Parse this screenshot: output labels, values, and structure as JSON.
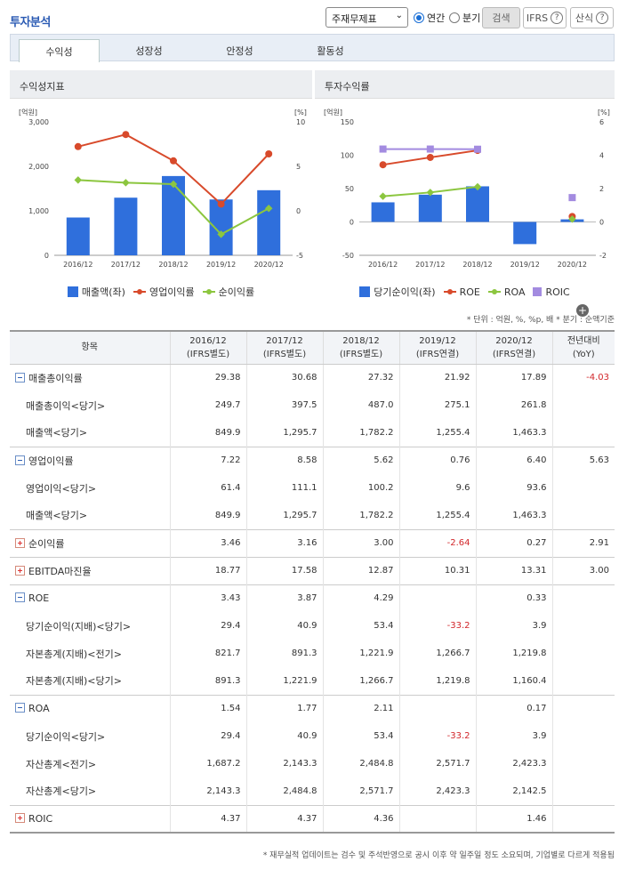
{
  "header": {
    "title": "투자분석",
    "select": "주재무제표",
    "radio_annual": "연간",
    "radio_quarter": "분기",
    "search": "검색",
    "ifrs": "IFRS",
    "calc": "산식",
    "help": "?"
  },
  "tabs": [
    "수익성",
    "성장성",
    "안정성",
    "활동성"
  ],
  "left_chart": {
    "title": "수익성지표",
    "left_unit": "[억원]",
    "right_unit": "[%]"
  },
  "right_chart": {
    "title": "투자수익률",
    "left_unit": "[억원]",
    "right_unit": "[%]"
  },
  "chart_data": [
    {
      "type": "bar",
      "title": "수익성지표",
      "categories": [
        "2016/12",
        "2017/12",
        "2018/12",
        "2019/12",
        "2020/12"
      ],
      "series": [
        {
          "name": "매출액(좌)",
          "kind": "bar",
          "axis": "left",
          "values": [
            849.9,
            1295.7,
            1782.2,
            1255.4,
            1463.3
          ],
          "color": "#2f6fdc"
        },
        {
          "name": "영업이익률",
          "kind": "line",
          "axis": "right",
          "values": [
            7.22,
            8.58,
            5.62,
            0.76,
            6.4
          ],
          "color": "#d84a2b"
        },
        {
          "name": "순이익률",
          "kind": "line",
          "axis": "right",
          "values": [
            3.46,
            3.16,
            3.0,
            -2.64,
            0.27
          ],
          "color": "#8cc63f"
        }
      ],
      "left_ticks": [
        "3,000",
        "2,000",
        "1,000",
        "0"
      ],
      "right_ticks": [
        "10",
        "5",
        "0",
        "-5"
      ],
      "ylim_left": [
        0,
        3000
      ],
      "ylim_right": [
        -5,
        10
      ]
    },
    {
      "type": "bar",
      "title": "투자수익률",
      "categories": [
        "2016/12",
        "2017/12",
        "2018/12",
        "2019/12",
        "2020/12"
      ],
      "series": [
        {
          "name": "당기순이익(좌)",
          "kind": "bar",
          "axis": "left",
          "values": [
            29.4,
            40.9,
            53.4,
            -33.2,
            3.9
          ],
          "color": "#2f6fdc"
        },
        {
          "name": "ROE",
          "kind": "line",
          "axis": "right",
          "values": [
            3.43,
            3.87,
            4.29,
            null,
            0.33
          ],
          "color": "#d84a2b"
        },
        {
          "name": "ROA",
          "kind": "line",
          "axis": "right",
          "values": [
            1.54,
            1.77,
            2.11,
            null,
            0.17
          ],
          "color": "#8cc63f"
        },
        {
          "name": "ROIC",
          "kind": "line",
          "axis": "right",
          "values": [
            4.37,
            4.37,
            4.36,
            null,
            1.46
          ],
          "color": "#a38be0"
        }
      ],
      "left_ticks": [
        "150",
        "100",
        "50",
        "0",
        "-50"
      ],
      "right_ticks": [
        "6",
        "4",
        "2",
        "0",
        "-2"
      ],
      "ylim_left": [
        -50,
        150
      ],
      "ylim_right": [
        -2,
        6
      ]
    }
  ],
  "note": "* 단위 : 억원, %, %p, 배   * 분기 : 순액기준",
  "table": {
    "headers": [
      [
        "항목"
      ],
      [
        "2016/12",
        "(IFRS별도)"
      ],
      [
        "2017/12",
        "(IFRS별도)"
      ],
      [
        "2018/12",
        "(IFRS별도)"
      ],
      [
        "2019/12",
        "(IFRS연결)"
      ],
      [
        "2020/12",
        "(IFRS연결)"
      ],
      [
        "전년대비",
        "(YoY)"
      ]
    ],
    "rows": [
      {
        "name": "매출총이익률",
        "toggle": "minus",
        "vals": [
          "29.38",
          "30.68",
          "27.32",
          "21.92",
          "17.89",
          "-4.03"
        ]
      },
      {
        "name": "매출총이익<당기>",
        "vals": [
          "249.7",
          "397.5",
          "487.0",
          "275.1",
          "261.8",
          ""
        ]
      },
      {
        "name": "매출액<당기>",
        "vals": [
          "849.9",
          "1,295.7",
          "1,782.2",
          "1,255.4",
          "1,463.3",
          ""
        ]
      },
      {
        "name": "영업이익률",
        "toggle": "minus",
        "vals": [
          "7.22",
          "8.58",
          "5.62",
          "0.76",
          "6.40",
          "5.63"
        ]
      },
      {
        "name": "영업이익<당기>",
        "vals": [
          "61.4",
          "111.1",
          "100.2",
          "9.6",
          "93.6",
          ""
        ]
      },
      {
        "name": "매출액<당기>",
        "vals": [
          "849.9",
          "1,295.7",
          "1,782.2",
          "1,255.4",
          "1,463.3",
          ""
        ]
      },
      {
        "name": "순이익률",
        "toggle": "plus",
        "vals": [
          "3.46",
          "3.16",
          "3.00",
          "-2.64",
          "0.27",
          "2.91"
        ]
      },
      {
        "name": "EBITDA마진율",
        "toggle": "plus",
        "vals": [
          "18.77",
          "17.58",
          "12.87",
          "10.31",
          "13.31",
          "3.00"
        ]
      },
      {
        "name": "ROE",
        "toggle": "minus",
        "vals": [
          "3.43",
          "3.87",
          "4.29",
          "",
          "0.33",
          ""
        ]
      },
      {
        "name": "당기순이익(지배)<당기>",
        "vals": [
          "29.4",
          "40.9",
          "53.4",
          "-33.2",
          "3.9",
          ""
        ]
      },
      {
        "name": "자본총계(지배)<전기>",
        "vals": [
          "821.7",
          "891.3",
          "1,221.9",
          "1,266.7",
          "1,219.8",
          ""
        ]
      },
      {
        "name": "자본총계(지배)<당기>",
        "vals": [
          "891.3",
          "1,221.9",
          "1,266.7",
          "1,219.8",
          "1,160.4",
          ""
        ]
      },
      {
        "name": "ROA",
        "toggle": "minus",
        "vals": [
          "1.54",
          "1.77",
          "2.11",
          "",
          "0.17",
          ""
        ]
      },
      {
        "name": "당기순이익<당기>",
        "vals": [
          "29.4",
          "40.9",
          "53.4",
          "-33.2",
          "3.9",
          ""
        ]
      },
      {
        "name": "자산총계<전기>",
        "vals": [
          "1,687.2",
          "2,143.3",
          "2,484.8",
          "2,571.7",
          "2,423.3",
          ""
        ]
      },
      {
        "name": "자산총계<당기>",
        "vals": [
          "2,143.3",
          "2,484.8",
          "2,571.7",
          "2,423.3",
          "2,142.5",
          ""
        ]
      },
      {
        "name": "ROIC",
        "toggle": "plus",
        "vals": [
          "4.37",
          "4.37",
          "4.36",
          "",
          "1.46",
          ""
        ]
      }
    ]
  },
  "footer": "* 재무실적 업데이트는 검수 및 주석반영으로 공시 이후 약 일주일 정도 소요되며, 기업별로 다르게 적용됨"
}
